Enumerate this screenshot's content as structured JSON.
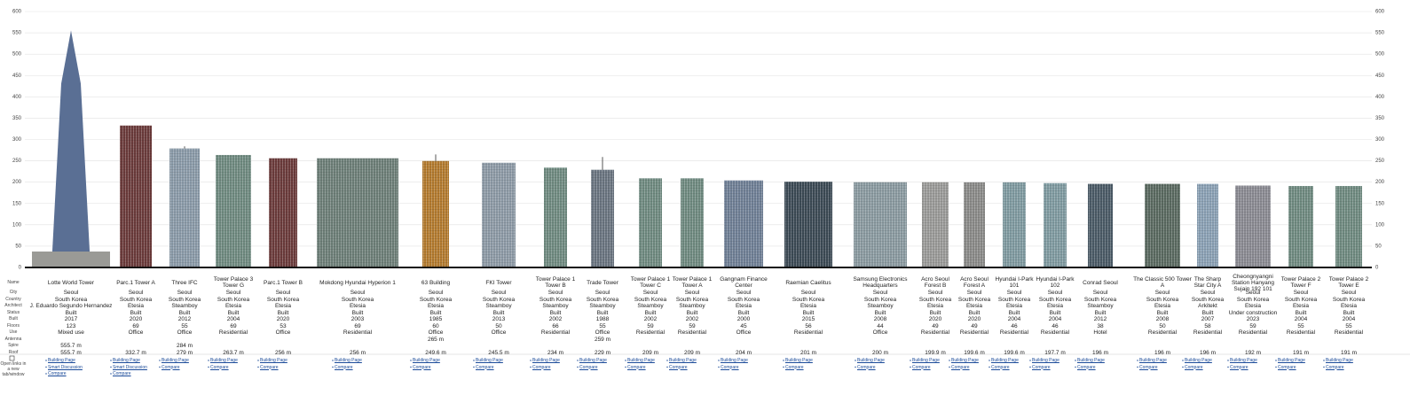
{
  "axis": {
    "ticks": [
      0,
      50,
      100,
      150,
      200,
      250,
      300,
      350,
      400,
      450,
      500,
      550,
      600
    ]
  },
  "row_labels": [
    "Name",
    "City",
    "Country",
    "Architect",
    "Status",
    "Built",
    "Floors",
    "Use",
    "Antenna",
    "Spire",
    "Roof"
  ],
  "links_label": "Open links in a new tab/window",
  "buildings": [
    {
      "name": "Lotte World Tower",
      "city": "Seoul",
      "country": "South Korea",
      "architect": "J. Eduardo Segundo Hernandez",
      "status": "Built",
      "built": 2017,
      "floors": 123,
      "use": "Mixed use",
      "antenna": null,
      "spire": {
        "value": 555.7,
        "label": "555.7 m"
      },
      "roof": {
        "value": 555.7,
        "label": "555.7 m"
      },
      "links": [
        "Building Page",
        "Smart Discussion",
        "Compare"
      ]
    },
    {
      "name": "Parc.1 Tower A",
      "city": "Seoul",
      "country": "South Korea",
      "architect": "Etesia",
      "status": "Built",
      "built": 2020,
      "floors": 69,
      "use": "Office",
      "antenna": null,
      "spire": null,
      "roof": {
        "value": 332.7,
        "label": "332.7 m"
      },
      "links": [
        "Building Page",
        "Smart Discussion",
        "Compare"
      ]
    },
    {
      "name": "Three IFC",
      "city": "Seoul",
      "country": "South Korea",
      "architect": "Steamboy",
      "status": "Built",
      "built": 2012,
      "floors": 55,
      "use": "Office",
      "antenna": null,
      "spire": {
        "value": 284,
        "label": "284 m"
      },
      "roof": {
        "value": 279,
        "label": "279 m"
      },
      "links": [
        "Building Page",
        "Compare"
      ]
    },
    {
      "name": "Tower Palace 3 Tower G",
      "city": "Seoul",
      "country": "South Korea",
      "architect": "Etesia",
      "status": "Built",
      "built": 2004,
      "floors": 69,
      "use": "Residential",
      "antenna": null,
      "spire": null,
      "roof": {
        "value": 263.7,
        "label": "263.7 m"
      },
      "links": [
        "Building Page",
        "Compare"
      ]
    },
    {
      "name": "Parc.1 Tower B",
      "city": "Seoul",
      "country": "South Korea",
      "architect": "Etesia",
      "status": "Built",
      "built": 2020,
      "floors": 53,
      "use": "Office",
      "antenna": null,
      "spire": null,
      "roof": {
        "value": 256,
        "label": "256 m"
      },
      "links": [
        "Building Page",
        "Compare"
      ]
    },
    {
      "name": "Mokdong Hyundai Hyperion 1",
      "city": "Seoul",
      "country": "South Korea",
      "architect": "Etesia",
      "status": "Built",
      "built": 2003,
      "floors": 69,
      "use": "Residential",
      "antenna": null,
      "spire": null,
      "roof": {
        "value": 256,
        "label": "256 m"
      },
      "links": [
        "Building Page",
        "Compare"
      ]
    },
    {
      "name": "63 Building",
      "city": "Seoul",
      "country": "South Korea",
      "architect": "Etesia",
      "status": "Built",
      "built": 1985,
      "floors": 60,
      "use": "Office",
      "antenna": {
        "value": 265,
        "label": "265 m"
      },
      "spire": null,
      "roof": {
        "value": 249.6,
        "label": "249.6 m"
      },
      "links": [
        "Building Page",
        "Compare"
      ]
    },
    {
      "name": "FKI Tower",
      "city": "Seoul",
      "country": "South Korea",
      "architect": "Steamboy",
      "status": "Built",
      "built": 2013,
      "floors": 50,
      "use": "Office",
      "antenna": null,
      "spire": null,
      "roof": {
        "value": 245.5,
        "label": "245.5 m"
      },
      "links": [
        "Building Page",
        "Compare"
      ]
    },
    {
      "name": "Tower Palace 1 Tower B",
      "city": "Seoul",
      "country": "South Korea",
      "architect": "Steamboy",
      "status": "Built",
      "built": 2002,
      "floors": 66,
      "use": "Residential",
      "antenna": null,
      "spire": null,
      "roof": {
        "value": 234,
        "label": "234 m"
      },
      "links": [
        "Building Page",
        "Compare"
      ]
    },
    {
      "name": "Trade Tower",
      "city": "Seoul",
      "country": "South Korea",
      "architect": "Steamboy",
      "status": "Built",
      "built": 1988,
      "floors": 55,
      "use": "Office",
      "antenna": {
        "value": 259,
        "label": "259 m"
      },
      "spire": null,
      "roof": {
        "value": 229,
        "label": "229 m"
      },
      "links": [
        "Building Page",
        "Compare"
      ]
    },
    {
      "name": "Tower Palace 1 Tower C",
      "city": "Seoul",
      "country": "South Korea",
      "architect": "Steamboy",
      "status": "Built",
      "built": 2002,
      "floors": 59,
      "use": "Residential",
      "antenna": null,
      "spire": null,
      "roof": {
        "value": 209,
        "label": "209 m"
      },
      "links": [
        "Building Page",
        "Compare"
      ]
    },
    {
      "name": "Tower Palace 1 Tower A",
      "city": "Seoul",
      "country": "South Korea",
      "architect": "Steamboy",
      "status": "Built",
      "built": 2002,
      "floors": 59,
      "use": "Residential",
      "antenna": null,
      "spire": null,
      "roof": {
        "value": 209,
        "label": "209 m"
      },
      "links": [
        "Building Page",
        "Compare"
      ]
    },
    {
      "name": "Gangnam Finance Center",
      "city": "Seoul",
      "country": "South Korea",
      "architect": "Etesia",
      "status": "Built",
      "built": 2000,
      "floors": 45,
      "use": "Office",
      "antenna": null,
      "spire": null,
      "roof": {
        "value": 204,
        "label": "204 m"
      },
      "links": [
        "Building Page",
        "Compare"
      ]
    },
    {
      "name": "Raemian Caelitus",
      "city": "Seoul",
      "country": "South Korea",
      "architect": "Etesia",
      "status": "Built",
      "built": 2015,
      "floors": 56,
      "use": "Residential",
      "antenna": null,
      "spire": null,
      "roof": {
        "value": 201,
        "label": "201 m"
      },
      "links": [
        "Building Page",
        "Compare"
      ]
    },
    {
      "name": "Samsung Electronics Headquarters",
      "city": "Seoul",
      "country": "South Korea",
      "architect": "Steamboy",
      "status": "Built",
      "built": 2008,
      "floors": 44,
      "use": "Office",
      "antenna": null,
      "spire": null,
      "roof": {
        "value": 200,
        "label": "200 m"
      },
      "links": [
        "Building Page",
        "Compare"
      ]
    },
    {
      "name": "Acro Seoul Forest B",
      "city": "Seoul",
      "country": "South Korea",
      "architect": "Etesia",
      "status": "Built",
      "built": 2020,
      "floors": 49,
      "use": "Residential",
      "antenna": null,
      "spire": null,
      "roof": {
        "value": 199.9,
        "label": "199.9 m"
      },
      "links": [
        "Building Page",
        "Compare"
      ]
    },
    {
      "name": "Acro Seoul Forest A",
      "city": "Seoul",
      "country": "South Korea",
      "architect": "Etesia",
      "status": "Built",
      "built": 2020,
      "floors": 49,
      "use": "Residential",
      "antenna": null,
      "spire": null,
      "roof": {
        "value": 199.6,
        "label": "199.6 m"
      },
      "links": [
        "Building Page",
        "Compare"
      ]
    },
    {
      "name": "Hyundai I-Park 101",
      "city": "Seoul",
      "country": "South Korea",
      "architect": "Etesia",
      "status": "Built",
      "built": 2004,
      "floors": 46,
      "use": "Residential",
      "antenna": null,
      "spire": null,
      "roof": {
        "value": 199.6,
        "label": "199.6 m"
      },
      "links": [
        "Building Page",
        "Compare"
      ]
    },
    {
      "name": "Hyundai I-Park 102",
      "city": "Seoul",
      "country": "South Korea",
      "architect": "Etesia",
      "status": "Built",
      "built": 2004,
      "floors": 46,
      "use": "Residential",
      "antenna": null,
      "spire": null,
      "roof": {
        "value": 197.7,
        "label": "197.7 m"
      },
      "links": [
        "Building Page",
        "Compare"
      ]
    },
    {
      "name": "Conrad Seoul",
      "city": "Seoul",
      "country": "South Korea",
      "architect": "Steamboy",
      "status": "Built",
      "built": 2012,
      "floors": 38,
      "use": "Hotel",
      "antenna": null,
      "spire": null,
      "roof": {
        "value": 196,
        "label": "196 m"
      },
      "links": [
        "Building Page",
        "Compare"
      ]
    },
    {
      "name": "The Classic 500 Tower A",
      "city": "Seoul",
      "country": "South Korea",
      "architect": "Etesia",
      "status": "Built",
      "built": 2008,
      "floors": 50,
      "use": "Residential",
      "antenna": null,
      "spire": null,
      "roof": {
        "value": 196,
        "label": "196 m"
      },
      "links": [
        "Building Page",
        "Compare"
      ]
    },
    {
      "name": "The Sharp Star City A",
      "city": "Seoul",
      "country": "South Korea",
      "architect": "Arkitekt",
      "status": "Built",
      "built": 2007,
      "floors": 58,
      "use": "Residential",
      "antenna": null,
      "spire": null,
      "roof": {
        "value": 196,
        "label": "196 m"
      },
      "links": [
        "Building Page",
        "Compare"
      ]
    },
    {
      "name": "Cheongnyangni Station Hanyang Sujain 192 101",
      "city": "Seoul",
      "country": "South Korea",
      "architect": "Etesia",
      "status": "Under construction",
      "built": 2023,
      "floors": 59,
      "use": "Residential",
      "antenna": null,
      "spire": null,
      "roof": {
        "value": 192,
        "label": "192 m"
      },
      "links": [
        "Building Page",
        "Compare"
      ]
    },
    {
      "name": "Tower Palace 2 Tower F",
      "city": "Seoul",
      "country": "South Korea",
      "architect": "Etesia",
      "status": "Built",
      "built": 2004,
      "floors": 55,
      "use": "Residential",
      "antenna": null,
      "spire": null,
      "roof": {
        "value": 191,
        "label": "191 m"
      },
      "links": [
        "Building Page",
        "Compare"
      ]
    },
    {
      "name": "Tower Palace 2 Tower E",
      "city": "Seoul",
      "country": "South Korea",
      "architect": "Etesia",
      "status": "Built",
      "built": 2004,
      "floors": 55,
      "use": "Residential",
      "antenna": null,
      "spire": null,
      "roof": {
        "value": 191,
        "label": "191 m"
      },
      "links": [
        "Building Page",
        "Compare"
      ]
    }
  ]
}
